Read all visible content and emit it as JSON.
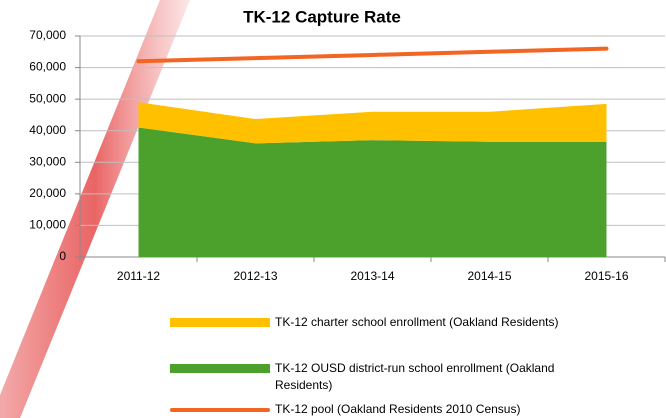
{
  "chart_data": {
    "type": "area_line",
    "title": "TK-12 Capture Rate",
    "categories": [
      "2011-12",
      "2012-13",
      "2013-14",
      "2014-15",
      "2015-16"
    ],
    "series": [
      {
        "name": "TK-12 charter school enrollment (Oakland Residents)",
        "type": "area",
        "color": "#ffc000",
        "values": [
          8000,
          7700,
          9000,
          9500,
          12000
        ]
      },
      {
        "name": "TK-12 OUSD district-run school enrollment (Oakland Residents)",
        "type": "area",
        "color": "#4ca02c",
        "values": [
          41000,
          36000,
          37000,
          36500,
          36500
        ]
      },
      {
        "name": "TK-12 pool (Oakland Residents 2010 Census)",
        "type": "line",
        "color": "#f26522",
        "values": [
          62000,
          63000,
          64000,
          65000,
          66000
        ]
      }
    ],
    "stacked": true,
    "ylim": [
      0,
      70000
    ],
    "yticks": [
      {
        "value": 0,
        "label": "0"
      },
      {
        "value": 10000,
        "label": "10,000"
      },
      {
        "value": 20000,
        "label": "20,000"
      },
      {
        "value": 30000,
        "label": "30,000"
      },
      {
        "value": 40000,
        "label": "40,000"
      },
      {
        "value": 50000,
        "label": "50,000"
      },
      {
        "value": 60000,
        "label": "60,000"
      },
      {
        "value": 70000,
        "label": "70,000"
      }
    ],
    "grid": true
  }
}
